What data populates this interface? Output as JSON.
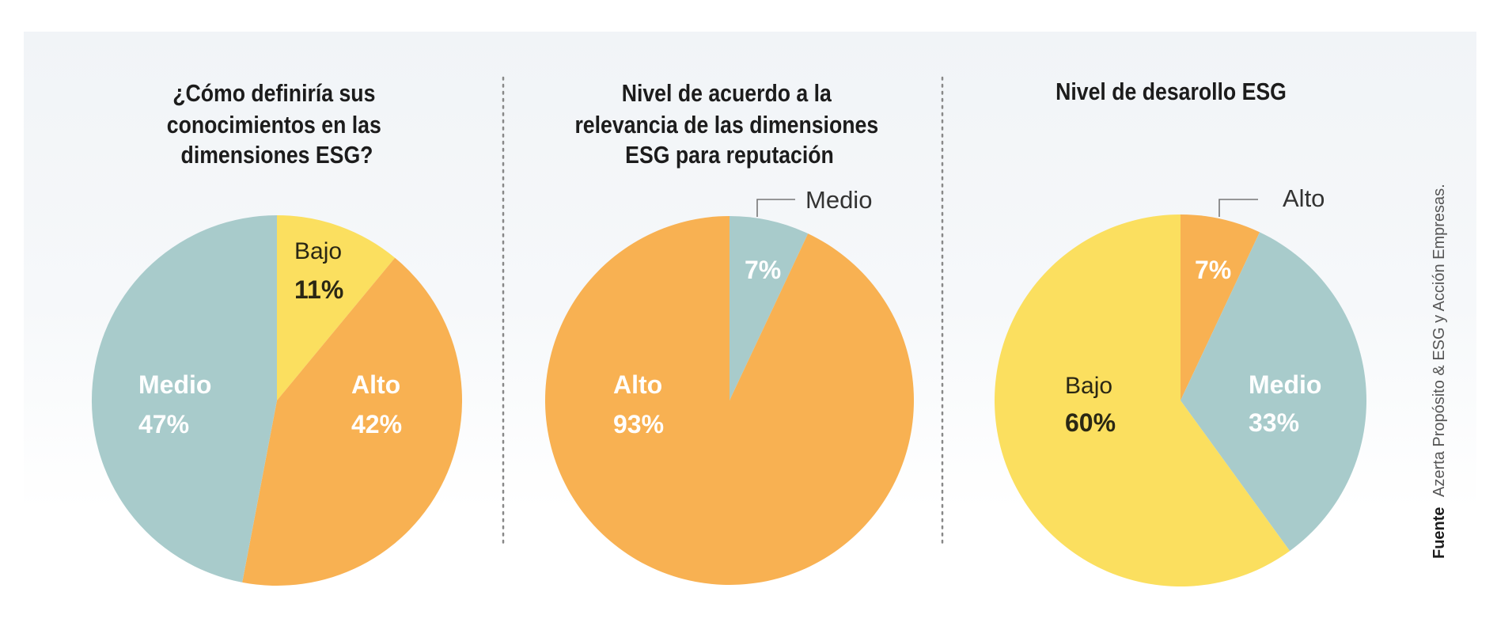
{
  "colors": {
    "teal": "#a8cbcb",
    "orange": "#f8b152",
    "yellow": "#fbdf5f",
    "label_light": "#ffffff",
    "label_dark": "#2a2714",
    "leader": "#777777",
    "divider": "#888888"
  },
  "source": {
    "label": "Fuente",
    "text": "Azerta Propósito & ESG y Acción Empresas."
  },
  "chart_data": [
    {
      "type": "pie",
      "title": "¿Cómo definiría sus conocimientos en las dimensiones ESG?",
      "title_lines": [
        "¿Cómo definiría sus",
        "conocimientos en las",
        "dimensiones ESG?"
      ],
      "slices": [
        {
          "label": "Bajo",
          "value": 11,
          "display": "11%",
          "color": "yellow",
          "label_style": "dark",
          "callout": false
        },
        {
          "label": "Alto",
          "value": 42,
          "display": "42%",
          "color": "orange",
          "label_style": "light",
          "callout": false
        },
        {
          "label": "Medio",
          "value": 47,
          "display": "47%",
          "color": "teal",
          "label_style": "light",
          "callout": false
        }
      ],
      "start": "12 o'clock",
      "direction": "clockwise"
    },
    {
      "type": "pie",
      "title": "Nivel de acuerdo a la relevancia de las dimensiones ESG para reputación",
      "title_lines": [
        "Nivel de acuerdo a la",
        "relevancia de las dimensiones",
        "ESG para reputación"
      ],
      "slices": [
        {
          "label": "Medio",
          "value": 7,
          "display": "7%",
          "color": "teal",
          "label_style": "light",
          "callout": true
        },
        {
          "label": "Alto",
          "value": 93,
          "display": "93%",
          "color": "orange",
          "label_style": "light",
          "callout": false
        }
      ],
      "start": "12 o'clock",
      "direction": "clockwise"
    },
    {
      "type": "pie",
      "title": "Nivel de desarollo ESG",
      "title_lines": [
        "Nivel de desarollo ESG"
      ],
      "slices": [
        {
          "label": "Alto",
          "value": 7,
          "display": "7%",
          "color": "orange",
          "label_style": "light",
          "callout": true
        },
        {
          "label": "Medio",
          "value": 33,
          "display": "33%",
          "color": "teal",
          "label_style": "light",
          "callout": false
        },
        {
          "label": "Bajo",
          "value": 60,
          "display": "60%",
          "color": "yellow",
          "label_style": "dark",
          "callout": false
        }
      ],
      "start": "12 o'clock",
      "direction": "clockwise"
    }
  ]
}
